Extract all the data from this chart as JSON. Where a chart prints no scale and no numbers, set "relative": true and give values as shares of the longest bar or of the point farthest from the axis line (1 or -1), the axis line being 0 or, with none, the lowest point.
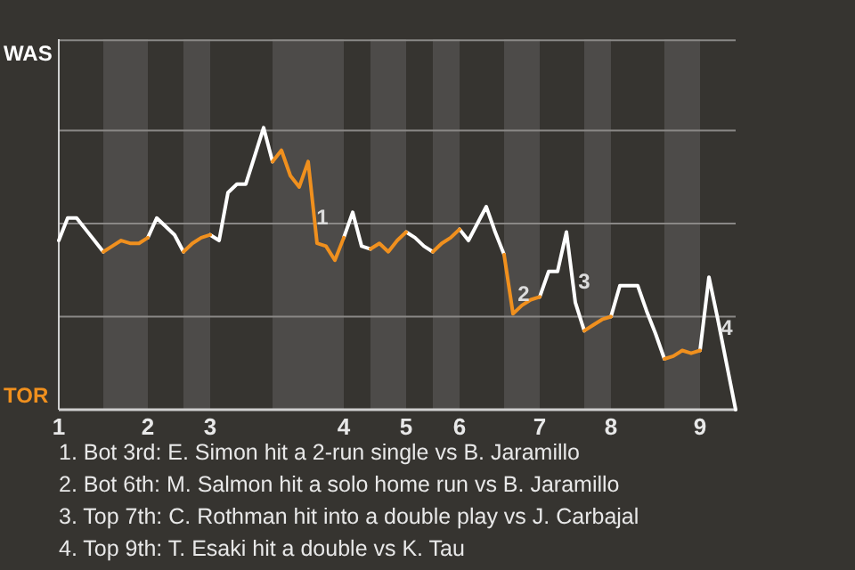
{
  "chart_data": {
    "type": "line",
    "relative": true,
    "categories": [
      "1",
      null,
      null,
      null,
      null,
      null,
      null,
      null,
      null,
      null,
      "2",
      null,
      null,
      null,
      null,
      null,
      null,
      "3",
      null,
      null,
      null,
      null,
      null,
      null,
      null,
      null,
      null,
      null,
      null,
      null,
      null,
      null,
      "4",
      null,
      null,
      null,
      null,
      null,
      null,
      "5",
      null,
      null,
      null,
      null,
      null,
      "6",
      null,
      null,
      null,
      null,
      null,
      null,
      null,
      null,
      "7",
      null,
      null,
      null,
      null,
      null,
      null,
      null,
      "8",
      null,
      null,
      null,
      null,
      null,
      null,
      null,
      null,
      null,
      "9",
      null,
      null,
      null,
      null
    ],
    "series": [
      {
        "color": "#ffffff",
        "values": [
          0.6,
          0.68,
          0.68,
          0.64,
          0.6,
          0.56,
          null,
          null,
          null,
          null,
          0.61,
          0.68,
          0.65,
          0.62,
          0.56,
          null,
          null,
          0.62,
          0.6,
          0.77,
          0.8,
          0.8,
          0.9,
          1,
          0.88,
          null,
          null,
          null,
          null,
          null,
          null,
          null,
          0.61,
          0.7,
          0.58,
          0.57,
          null,
          null,
          null,
          0.63,
          0.61,
          0.58,
          0.56,
          null,
          null,
          0.64,
          0.6,
          0.66,
          0.72,
          0.63,
          0.55,
          null,
          null,
          null,
          0.4,
          0.49,
          0.49,
          0.63,
          0.38,
          0.28,
          null,
          null,
          0.33,
          0.44,
          0.44,
          0.44,
          0.35,
          0.27,
          0.18,
          null,
          null,
          null,
          0.21,
          0.47,
          0.32,
          0.16,
          0
        ]
      },
      {
        "color": "#f0901e",
        "values": [
          null,
          null,
          null,
          null,
          null,
          0.56,
          0.58,
          0.6,
          0.59,
          0.59,
          0.61,
          null,
          null,
          null,
          0.56,
          0.59,
          0.61,
          0.62,
          null,
          null,
          null,
          null,
          null,
          null,
          0.88,
          0.92,
          0.83,
          0.79,
          0.88,
          0.59,
          0.58,
          0.53,
          0.61,
          null,
          null,
          0.57,
          0.59,
          0.56,
          0.6,
          0.63,
          null,
          null,
          0.56,
          0.59,
          0.61,
          0.64,
          null,
          null,
          null,
          null,
          0.55,
          0.34,
          0.37,
          0.39,
          0.4,
          null,
          null,
          null,
          null,
          0.28,
          0.3,
          0.32,
          0.33,
          null,
          null,
          null,
          null,
          null,
          0.18,
          0.19,
          0.21,
          0.2,
          0.21,
          null,
          null,
          null,
          null
        ]
      }
    ],
    "ref_lines": [
      {
        "axis": "y",
        "value": 0.33,
        "color": "#8a8886"
      },
      {
        "axis": "y",
        "value": 0.66,
        "color": "#8a8886"
      },
      {
        "axis": "y",
        "value": 0.99,
        "color": "#8a8886"
      },
      {
        "axis": "y",
        "value": 1.31,
        "color": "#8a8886"
      }
    ],
    "annotations": [
      "WAS",
      "TOR",
      "1",
      "2",
      "3",
      "4",
      "1. Bot 3rd: E. Simon hit a 2-run single vs B. Jaramillo",
      "2. Bot 6th: M. Salmon hit a solo home run vs B. Jaramillo",
      "3. Top 7th: C. Rothman hit into a double play vs J. Carbajal",
      "4. Top 9th: T. Esaki hit a double vs K. Tau"
    ]
  }
}
